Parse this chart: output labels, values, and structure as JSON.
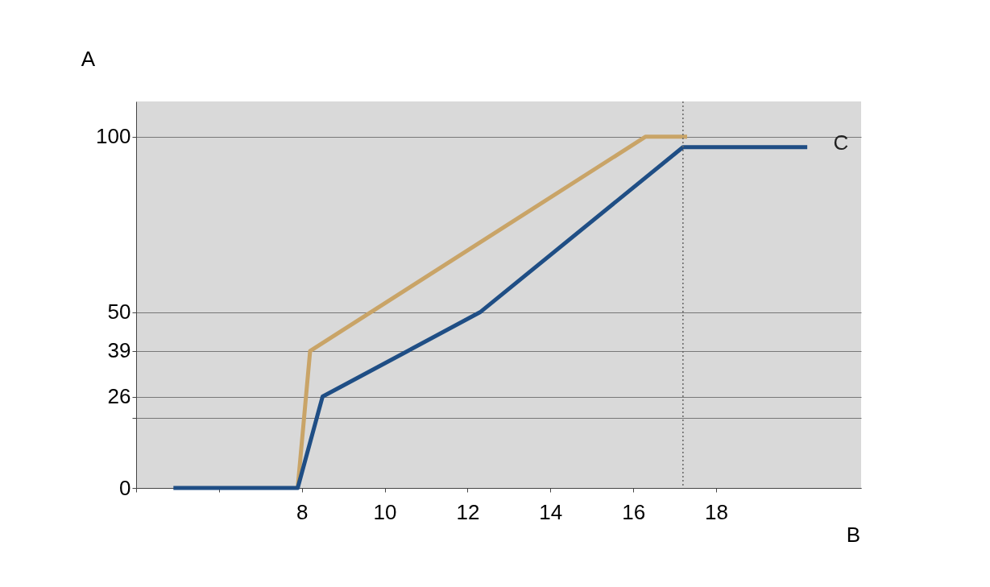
{
  "chart_data": {
    "type": "line",
    "xlabel": "B",
    "ylabel": "A",
    "xlim": [
      4,
      21.5
    ],
    "ylim": [
      0,
      110
    ],
    "xticks": [
      {
        "value": 4,
        "label": null
      },
      {
        "value": 6,
        "label": null
      },
      8,
      10,
      12,
      14,
      16,
      18
    ],
    "yticks": [
      0,
      {
        "value": 20,
        "label": null
      },
      26,
      39,
      50,
      100
    ],
    "grid": "y",
    "marker": "none",
    "line_style": "solid",
    "series": [
      {
        "color": "#c9a467",
        "x": [
          17.3,
          16.3,
          8.2,
          7.9
        ],
        "values": [
          100,
          100,
          39,
          0
        ]
      },
      {
        "color": "#1f4e85",
        "x": [
          4.9,
          7.9,
          8.5,
          12.3,
          17.2,
          20.2
        ],
        "values": [
          0,
          0,
          26,
          50,
          97,
          97
        ]
      }
    ],
    "ref_lines": [
      {
        "axis": "x",
        "value": 17.2,
        "label": null,
        "color": "#666666",
        "line_style": "dotted"
      }
    ],
    "annotations": [
      "C"
    ]
  }
}
